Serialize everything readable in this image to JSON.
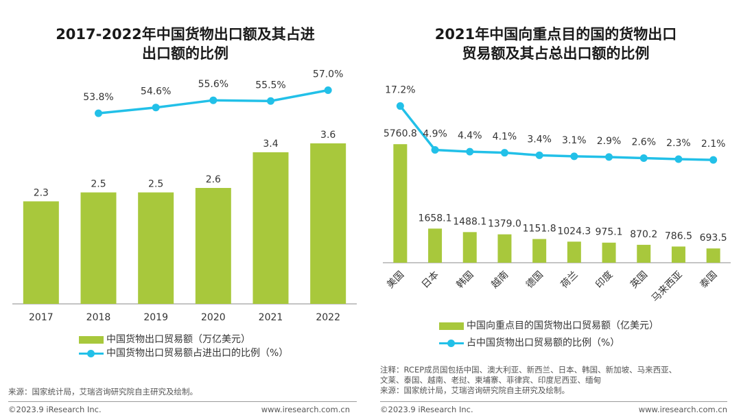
{
  "left": {
    "title_line1": "2017-2022年中国货物出口额及其占进",
    "title_line2": "出口额的比例",
    "legend_bar": "中国货物出口贸易额（万亿美元）",
    "legend_line": "中国货物出口贸易额占进出口的比例（%）",
    "source": "来源：国家统计局，艾瑞咨询研究院自主研究及绘制。",
    "footer_left": "©2023.9 iResearch Inc.",
    "footer_right": "www.iresearch.com.cn"
  },
  "right": {
    "title_line1": "2021年中国向重点目的国的货物出口",
    "title_line2": "贸易额及其占总出口额的比例",
    "legend_bar": "中国向重点目的国货物出口贸易额（亿美元）",
    "legend_line": "占中国货物出口贸易额的比例（%）",
    "note_line1": "注释：RCEP成员国包括中国、澳大利亚、新西兰、日本、韩国、新加坡、马来西亚、",
    "note_line2": "文莱、泰国、越南、老挝、柬埔寨、菲律宾、印度尼西亚、缅甸",
    "source": "来源：国家统计局，艾瑞咨询研究院自主研究及绘制。",
    "footer_left": "©2023.9 iResearch Inc.",
    "footer_right": "www.iresearch.com.cn"
  },
  "colors": {
    "bar": "#a8c83c",
    "line": "#22c0e8",
    "axis": "#888888"
  },
  "chart_data": [
    {
      "type": "bar",
      "title": "2017-2022年中国货物出口额及其占进出口额的比例",
      "categories": [
        "2017",
        "2018",
        "2019",
        "2020",
        "2021",
        "2022"
      ],
      "series": [
        {
          "name": "中国货物出口贸易额（万亿美元）",
          "type": "bar",
          "values": [
            2.3,
            2.5,
            2.5,
            2.6,
            3.4,
            3.6
          ],
          "labels": [
            "2.3",
            "2.5",
            "2.5",
            "2.6",
            "3.4",
            "3.6"
          ]
        },
        {
          "name": "中国货物出口贸易额占进出口的比例（%）",
          "type": "line",
          "values": [
            null,
            53.8,
            54.6,
            55.6,
            55.5,
            57.0
          ],
          "labels": [
            "",
            "53.8%",
            "54.6%",
            "55.6%",
            "55.5%",
            "57.0%"
          ]
        }
      ]
    },
    {
      "type": "bar",
      "title": "2021年中国向重点目的国的货物出口贸易额及其占总出口额的比例",
      "categories": [
        "美国",
        "日本",
        "韩国",
        "越南",
        "德国",
        "荷兰",
        "印度",
        "英国",
        "马来西亚",
        "泰国"
      ],
      "series": [
        {
          "name": "中国向重点目的国货物出口贸易额（亿美元）",
          "type": "bar",
          "values": [
            5760.8,
            1658.1,
            1488.1,
            1379.0,
            1151.8,
            1024.3,
            975.1,
            870.2,
            786.5,
            693.5
          ],
          "labels": [
            "5760.8",
            "1658.1",
            "1488.1",
            "1379.0",
            "1151.8",
            "1024.3",
            "975.1",
            "870.2",
            "786.5",
            "693.5"
          ]
        },
        {
          "name": "占中国货物出口贸易额的比例（%）",
          "type": "line",
          "values": [
            17.2,
            4.9,
            4.4,
            4.1,
            3.4,
            3.1,
            2.9,
            2.6,
            2.3,
            2.1
          ],
          "labels": [
            "17.2%",
            "4.9%",
            "4.4%",
            "4.1%",
            "3.4%",
            "3.1%",
            "2.9%",
            "2.6%",
            "2.3%",
            "2.1%"
          ]
        }
      ]
    }
  ]
}
